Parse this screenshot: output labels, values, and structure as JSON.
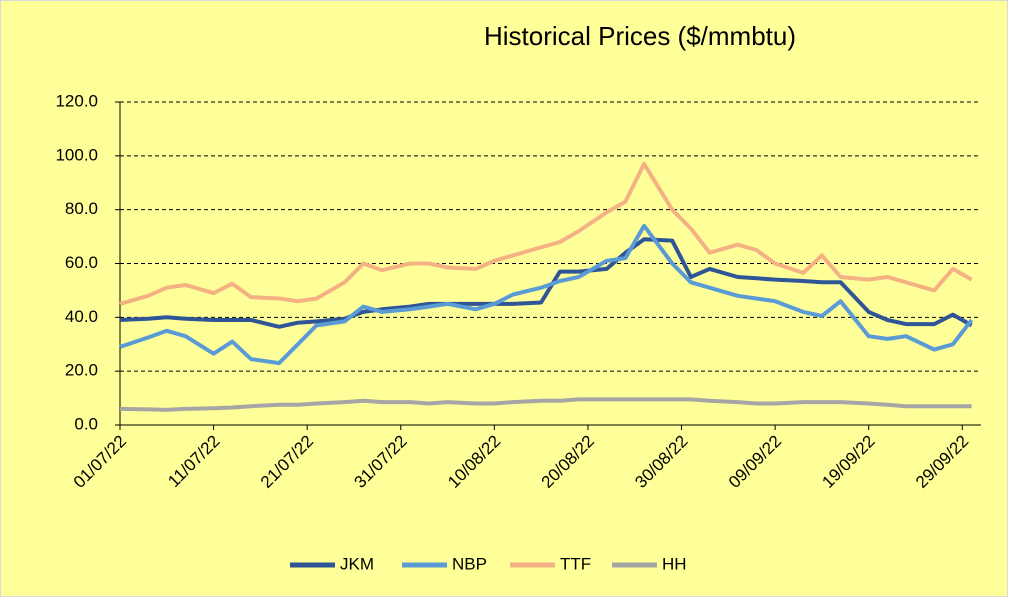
{
  "chart_data": {
    "type": "line",
    "title": "Historical Prices ($/mmbtu)",
    "x": [
      "2022-07-01",
      "2022-07-04",
      "2022-07-06",
      "2022-07-08",
      "2022-07-11",
      "2022-07-13",
      "2022-07-15",
      "2022-07-18",
      "2022-07-20",
      "2022-07-22",
      "2022-07-25",
      "2022-07-27",
      "2022-07-29",
      "2022-08-01",
      "2022-08-03",
      "2022-08-05",
      "2022-08-08",
      "2022-08-10",
      "2022-08-12",
      "2022-08-15",
      "2022-08-17",
      "2022-08-19",
      "2022-08-22",
      "2022-08-24",
      "2022-08-26",
      "2022-08-29",
      "2022-08-31",
      "2022-09-02",
      "2022-09-05",
      "2022-09-07",
      "2022-09-09",
      "2022-09-12",
      "2022-09-14",
      "2022-09-16",
      "2022-09-19",
      "2022-09-21",
      "2022-09-23",
      "2022-09-26",
      "2022-09-28",
      "2022-09-30"
    ],
    "series": [
      {
        "name": "JKM",
        "color": "#2f5597",
        "values": [
          39,
          39.5,
          40,
          39.5,
          39,
          39,
          39,
          36.5,
          38,
          38.5,
          39.5,
          42,
          43,
          44,
          45,
          45,
          45,
          45,
          45,
          45.5,
          57,
          57,
          58,
          64,
          69,
          68.5,
          55,
          58,
          55,
          54.5,
          54,
          53.5,
          53,
          53,
          42,
          39,
          37.5,
          37.5,
          41,
          37
        ]
      },
      {
        "name": "NBP",
        "color": "#5b9bd5",
        "values": [
          29,
          32.5,
          35,
          33,
          26.5,
          31,
          24.5,
          23,
          30,
          37,
          38.5,
          44,
          42,
          43,
          44,
          45,
          43,
          45,
          48.5,
          51,
          53.5,
          55,
          61,
          62,
          74,
          60,
          53,
          51,
          48,
          47,
          46,
          42,
          40.5,
          46,
          33,
          32,
          33,
          28,
          30,
          39
        ]
      },
      {
        "name": "TTF",
        "color": "#f4b183",
        "values": [
          45,
          48,
          51,
          52,
          49,
          52.5,
          47.5,
          47,
          46,
          47,
          53,
          60,
          57.5,
          60,
          60,
          58.5,
          58,
          61,
          63,
          66,
          68,
          72,
          79,
          83,
          97,
          80,
          73,
          64,
          67,
          65,
          60,
          56.5,
          63,
          55,
          54,
          55,
          53,
          50,
          58,
          54
        ]
      },
      {
        "name": "HH",
        "color": "#a5a5a5",
        "values": [
          6,
          5.8,
          5.6,
          6,
          6.2,
          6.5,
          7,
          7.5,
          7.5,
          8,
          8.5,
          9,
          8.5,
          8.5,
          8,
          8.5,
          8,
          8,
          8.5,
          9,
          9,
          9.5,
          9.5,
          9.5,
          9.5,
          9.5,
          9.5,
          9,
          8.5,
          8,
          8,
          8.5,
          8.5,
          8.5,
          8,
          7.5,
          7,
          7,
          7,
          7
        ]
      }
    ],
    "xlim": [
      "2022-07-01",
      "2022-10-01"
    ],
    "xticks": [
      {
        "value": "2022-07-01",
        "label": "01/07/22"
      },
      {
        "value": "2022-07-11",
        "label": "11/07/22"
      },
      {
        "value": "2022-07-21",
        "label": "21/07/22"
      },
      {
        "value": "2022-07-31",
        "label": "31/07/22"
      },
      {
        "value": "2022-08-10",
        "label": "10/08/22"
      },
      {
        "value": "2022-08-20",
        "label": "20/08/22"
      },
      {
        "value": "2022-08-30",
        "label": "30/08/22"
      },
      {
        "value": "2022-09-09",
        "label": "09/09/22"
      },
      {
        "value": "2022-09-19",
        "label": "19/09/22"
      },
      {
        "value": "2022-09-29",
        "label": "29/09/22"
      }
    ],
    "ylim": [
      0,
      120
    ],
    "yticks": [
      {
        "value": 0,
        "label": "0.0"
      },
      {
        "value": 20,
        "label": "20.0"
      },
      {
        "value": 40,
        "label": "40.0"
      },
      {
        "value": 60,
        "label": "60.0"
      },
      {
        "value": 80,
        "label": "80.0"
      },
      {
        "value": 100,
        "label": "100.0"
      },
      {
        "value": 120,
        "label": "120.0"
      }
    ],
    "grid": true,
    "legend": "bottom"
  }
}
